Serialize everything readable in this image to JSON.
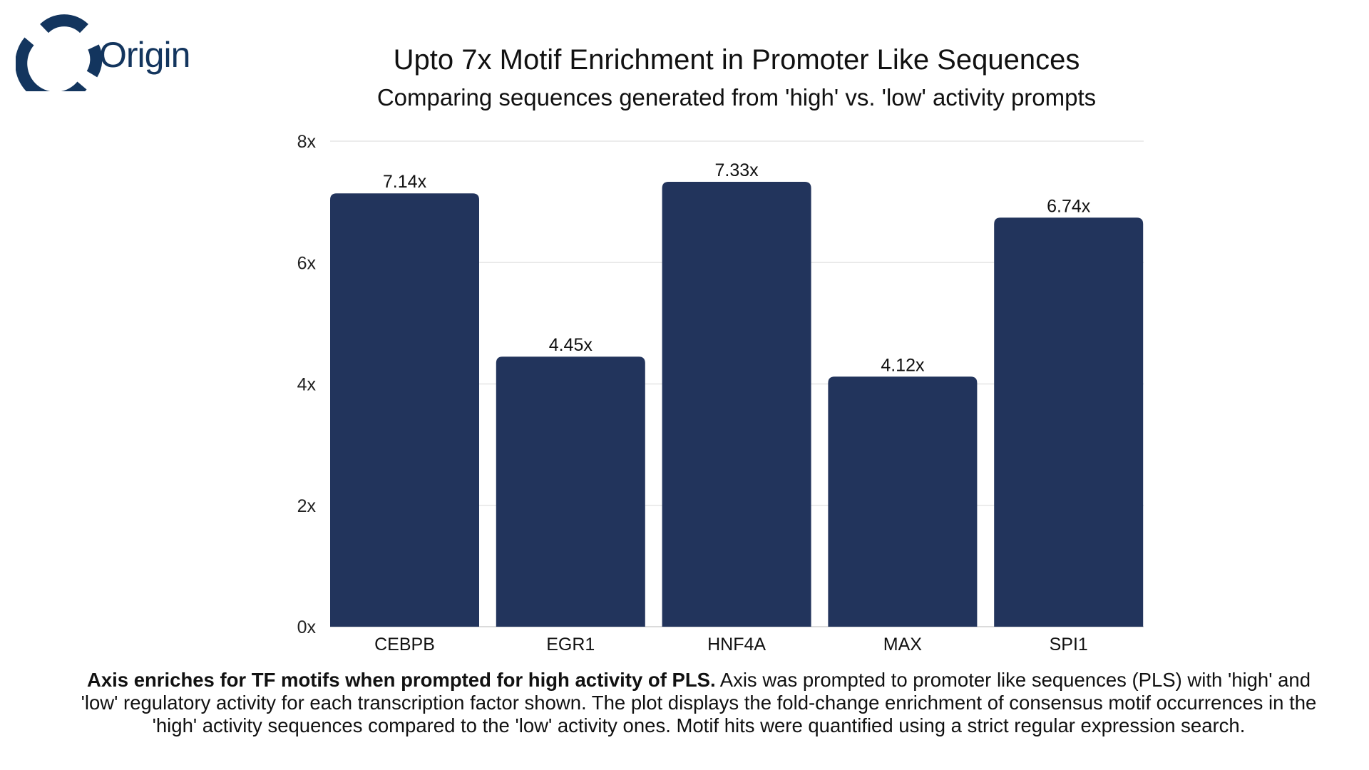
{
  "logo": {
    "text": "Origin",
    "color": "#13355e"
  },
  "chart_data": {
    "type": "bar",
    "title": "Upto 7x Motif Enrichment in Promoter Like Sequences",
    "subtitle": "Comparing sequences generated from 'high' vs. 'low' activity prompts",
    "categories": [
      "CEBPB",
      "EGR1",
      "HNF4A",
      "MAX",
      "SPI1"
    ],
    "values": [
      7.14,
      4.45,
      7.33,
      4.12,
      6.74
    ],
    "data_labels": [
      "7.14x",
      "4.45x",
      "7.33x",
      "4.12x",
      "6.74x"
    ],
    "xlabel": "",
    "ylabel": "",
    "ylim": [
      0,
      8
    ],
    "yticks": [
      0,
      2,
      4,
      6,
      8
    ],
    "ytick_labels": [
      "0x",
      "2x",
      "4x",
      "6x",
      "8x"
    ],
    "grid": true,
    "bar_color": "#22345c"
  },
  "caption": {
    "bold": "Axis enriches for TF motifs when prompted for high activity of PLS.",
    "text": " Axis was prompted to promoter like sequences (PLS) with 'high' and 'low' regulatory activity for each transcription factor shown. The plot displays the fold-change enrichment of consensus motif occurrences in the 'high' activity sequences compared to the 'low' activity ones. Motif hits were quantified using a strict regular expression search."
  }
}
